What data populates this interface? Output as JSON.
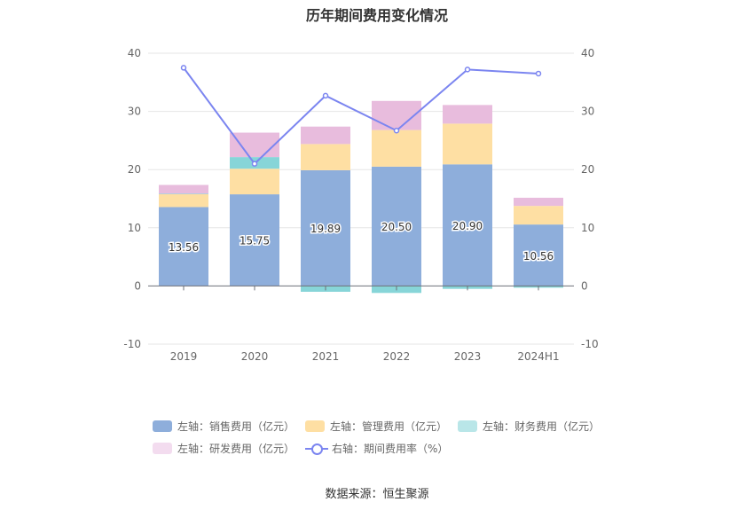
{
  "chart_data": {
    "type": "bar",
    "title": "历年期间费用变化情况",
    "categories": [
      "2019",
      "2020",
      "2021",
      "2022",
      "2023",
      "2024H1"
    ],
    "stacked": true,
    "left_axis": {
      "ylim": [
        -10,
        40
      ],
      "ticks": [
        "-10",
        "0",
        "10",
        "20",
        "30",
        "40"
      ]
    },
    "right_axis": {
      "ylim": [
        -10,
        40
      ],
      "ticks": [
        "-10",
        "0",
        "10",
        "20",
        "30",
        "40"
      ]
    },
    "grid": true,
    "legend_position": "bottom",
    "series": [
      {
        "name": "左轴：销售费用（亿元）",
        "axis": "left",
        "type": "bar",
        "color": "#8eaedb",
        "values": [
          13.56,
          15.75,
          19.89,
          20.5,
          20.9,
          10.56
        ],
        "labels": [
          "13.56",
          "15.75",
          "19.89",
          "20.50",
          "20.90",
          "10.56"
        ]
      },
      {
        "name": "左轴：管理费用（亿元）",
        "axis": "left",
        "type": "bar",
        "color": "#fedfa3",
        "values": [
          2.2,
          4.4,
          4.5,
          6.3,
          7.0,
          3.2
        ]
      },
      {
        "name": "左轴：财务费用（亿元）",
        "axis": "left",
        "type": "bar",
        "color": "#87d5d8",
        "values": [
          0.1,
          2.0,
          -1.0,
          -1.2,
          -0.5,
          -0.3
        ]
      },
      {
        "name": "左轴：研发费用（亿元）",
        "axis": "left",
        "type": "bar",
        "color": "#e8bcdd",
        "values": [
          1.5,
          4.2,
          3.0,
          5.0,
          3.2,
          1.4
        ]
      },
      {
        "name": "右轴：期间费用率（%）",
        "axis": "right",
        "type": "line",
        "color": "#7b85f0",
        "values": [
          37.5,
          21.0,
          32.7,
          26.7,
          37.2,
          36.5
        ]
      }
    ]
  },
  "source": "数据来源：恒生聚源"
}
